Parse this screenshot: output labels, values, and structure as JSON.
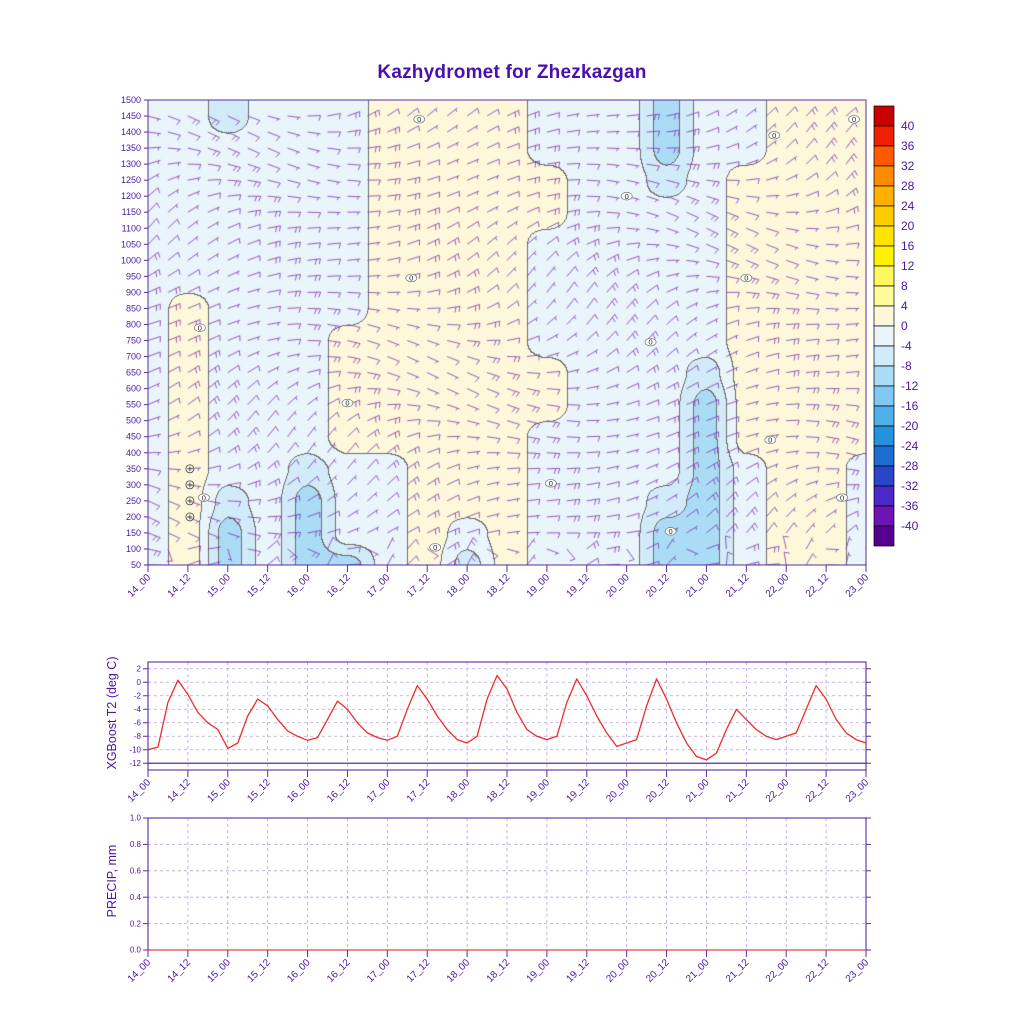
{
  "title": "Kazhydromet for Zhezkazgan",
  "colors": {
    "axis": "#5a2ca0",
    "label": "#4a16a6",
    "grid": "#b8a2da",
    "title": "#4810b0",
    "contour_line": "#6e6e6e",
    "barb": "#7a35a8",
    "t2_line": "#ee2e24"
  },
  "x_axis": {
    "labels": [
      "14_00",
      "14_12",
      "15_00",
      "15_12",
      "16_00",
      "16_12",
      "17_00",
      "17_12",
      "18_00",
      "18_12",
      "19_00",
      "19_12",
      "20_00",
      "20_12",
      "21_00",
      "21_12",
      "22_00",
      "22_12",
      "23_00"
    ]
  },
  "chart_data": [
    {
      "type": "heatmap",
      "title": "Kazhydromet for Zhezkazgan",
      "ylabel": "",
      "y_ticks": [
        50,
        100,
        150,
        200,
        250,
        300,
        350,
        400,
        450,
        500,
        550,
        600,
        650,
        700,
        750,
        800,
        850,
        900,
        950,
        1000,
        1050,
        1100,
        1150,
        1200,
        1250,
        1300,
        1350,
        1400,
        1450,
        1500
      ],
      "y_range": [
        50,
        1500
      ],
      "contour_interval": 4,
      "grid_levels": [
        50,
        150,
        250,
        350,
        450,
        550,
        650,
        750,
        850,
        950,
        1050,
        1150,
        1250,
        1350,
        1450
      ],
      "temperature_grid": [
        [
          -2,
          2,
          -10,
          -2,
          -10,
          -10,
          -2,
          2,
          -6,
          2,
          -2,
          -2,
          -2,
          -10,
          -10,
          -2,
          2,
          2,
          -2
        ],
        [
          -2,
          2,
          -10,
          -2,
          -10,
          -2,
          -2,
          2,
          -2,
          2,
          -2,
          -2,
          -2,
          -10,
          -10,
          -2,
          2,
          2,
          -2
        ],
        [
          -2,
          2,
          -6,
          -2,
          -10,
          -2,
          -2,
          2,
          2,
          2,
          -2,
          -2,
          -2,
          -6,
          -10,
          -2,
          2,
          2,
          -2
        ],
        [
          -2,
          2,
          -2,
          -2,
          -6,
          -2,
          -2,
          2,
          2,
          2,
          -2,
          -2,
          -2,
          -2,
          -10,
          -2,
          2,
          2,
          -2
        ],
        [
          -2,
          2,
          -2,
          -2,
          -2,
          2,
          2,
          2,
          2,
          2,
          -2,
          -2,
          -2,
          -2,
          -10,
          2,
          2,
          2,
          2
        ],
        [
          -2,
          2,
          -2,
          -2,
          -2,
          2,
          2,
          2,
          2,
          2,
          2,
          -2,
          -2,
          -2,
          -10,
          2,
          2,
          2,
          2
        ],
        [
          -2,
          2,
          -2,
          -2,
          -2,
          2,
          2,
          2,
          2,
          2,
          2,
          -2,
          -2,
          -2,
          -6,
          2,
          2,
          2,
          2
        ],
        [
          -2,
          2,
          -2,
          -2,
          -2,
          2,
          2,
          2,
          2,
          2,
          -2,
          -2,
          -2,
          -2,
          -2,
          2,
          2,
          2,
          2
        ],
        [
          -2,
          2,
          -2,
          -2,
          -2,
          -2,
          2,
          2,
          2,
          2,
          -2,
          -2,
          -2,
          -2,
          -2,
          2,
          2,
          2,
          2
        ],
        [
          -2,
          -2,
          -2,
          -2,
          -2,
          -2,
          2,
          2,
          2,
          2,
          -2,
          -2,
          -2,
          -2,
          -2,
          2,
          2,
          2,
          2
        ],
        [
          -2,
          -2,
          -2,
          -2,
          -2,
          -2,
          2,
          2,
          2,
          2,
          -2,
          -2,
          -2,
          -2,
          -2,
          2,
          2,
          2,
          2
        ],
        [
          -2,
          -2,
          -2,
          -2,
          -2,
          -2,
          2,
          2,
          2,
          2,
          2,
          -2,
          -2,
          -2,
          -2,
          2,
          2,
          2,
          2
        ],
        [
          -2,
          -2,
          -2,
          -2,
          -2,
          -2,
          2,
          2,
          2,
          2,
          2,
          -2,
          -2,
          -6,
          -2,
          2,
          2,
          2,
          2
        ],
        [
          -2,
          -2,
          -2,
          -2,
          -2,
          -2,
          2,
          2,
          2,
          2,
          -2,
          -2,
          -2,
          -10,
          -2,
          -2,
          2,
          2,
          2
        ],
        [
          -2,
          -2,
          -6,
          -2,
          -2,
          -2,
          2,
          2,
          2,
          2,
          -2,
          -2,
          -2,
          -10,
          -2,
          -2,
          2,
          2,
          2
        ]
      ],
      "zero_contour_labels": [
        [
          6.8,
          1440
        ],
        [
          17.7,
          1440
        ],
        [
          15.7,
          1390
        ],
        [
          12.0,
          1200
        ],
        [
          1.3,
          790
        ],
        [
          6.6,
          945
        ],
        [
          15.0,
          945
        ],
        [
          12.6,
          745
        ],
        [
          5.0,
          555
        ],
        [
          10.1,
          305
        ],
        [
          15.6,
          440
        ],
        [
          17.4,
          260
        ],
        [
          1.4,
          260
        ],
        [
          7.2,
          105
        ],
        [
          13.1,
          155
        ]
      ],
      "calm_symbols": [
        [
          1.05,
          350
        ],
        [
          1.05,
          300
        ],
        [
          1.05,
          250
        ],
        [
          1.05,
          200
        ]
      ],
      "colorbar": {
        "ticks": [
          40,
          36,
          32,
          28,
          24,
          20,
          16,
          12,
          8,
          4,
          0,
          -4,
          -8,
          -12,
          -16,
          -20,
          -24,
          -28,
          -32,
          -36,
          -40
        ],
        "colors": [
          "#55008f",
          "#6e14b4",
          "#4b28c8",
          "#2846c8",
          "#1e6ed2",
          "#2492dc",
          "#4fb0e8",
          "#7ec9f1",
          "#abdcf6",
          "#d2ebf8",
          "#e9f4fb",
          "#fdf8da",
          "#fffa9b",
          "#fff75e",
          "#fff200",
          "#ffe400",
          "#ffcc00",
          "#ffb000",
          "#ff8c00",
          "#ff5a00",
          "#ef2000",
          "#c80000"
        ]
      }
    },
    {
      "type": "line",
      "name": "XGBoost T2 (deg C)",
      "ylabel": "XGBoost T2 (deg C)",
      "y_ticks": [
        2,
        0,
        -2,
        -4,
        -6,
        -8,
        -10,
        -12
      ],
      "ylim": [
        -13,
        3
      ],
      "x_step_hours": 3,
      "baseline_value": -12,
      "line_color": "#ee2e24",
      "values": [
        -10,
        -9.6,
        -3,
        0.3,
        -1.8,
        -4.5,
        -6,
        -7,
        -9.8,
        -9,
        -5,
        -2.5,
        -3.5,
        -5.5,
        -7.2,
        -8,
        -8.6,
        -8.2,
        -5.5,
        -2.8,
        -4,
        -6,
        -7.5,
        -8.2,
        -8.6,
        -8,
        -4,
        -0.5,
        -2.5,
        -5,
        -7,
        -8.5,
        -9,
        -8,
        -2.5,
        1,
        -1,
        -4.5,
        -7,
        -8,
        -8.5,
        -8,
        -3,
        0.5,
        -2,
        -5,
        -7.5,
        -9.5,
        -9,
        -8.5,
        -3.5,
        0.5,
        -2.5,
        -6,
        -9,
        -11,
        -11.5,
        -10.5,
        -7,
        -4,
        -5.5,
        -7,
        -8,
        -8.5,
        -8,
        -7.5,
        -4,
        -0.5,
        -2.5,
        -5.5,
        -7.5,
        -8.5,
        -9
      ]
    },
    {
      "type": "line",
      "name": "PRECIP, mm",
      "ylabel": "PRECIP, mm",
      "y_ticks": [
        1.0,
        0.8,
        0.6,
        0.4,
        0.2,
        0.0
      ],
      "ylim": [
        0,
        1
      ],
      "x_step_hours": 12,
      "line_color": "#ee2e24",
      "values": [
        0,
        0,
        0,
        0,
        0,
        0,
        0,
        0,
        0,
        0,
        0,
        0,
        0,
        0,
        0,
        0,
        0,
        0,
        0
      ]
    }
  ]
}
